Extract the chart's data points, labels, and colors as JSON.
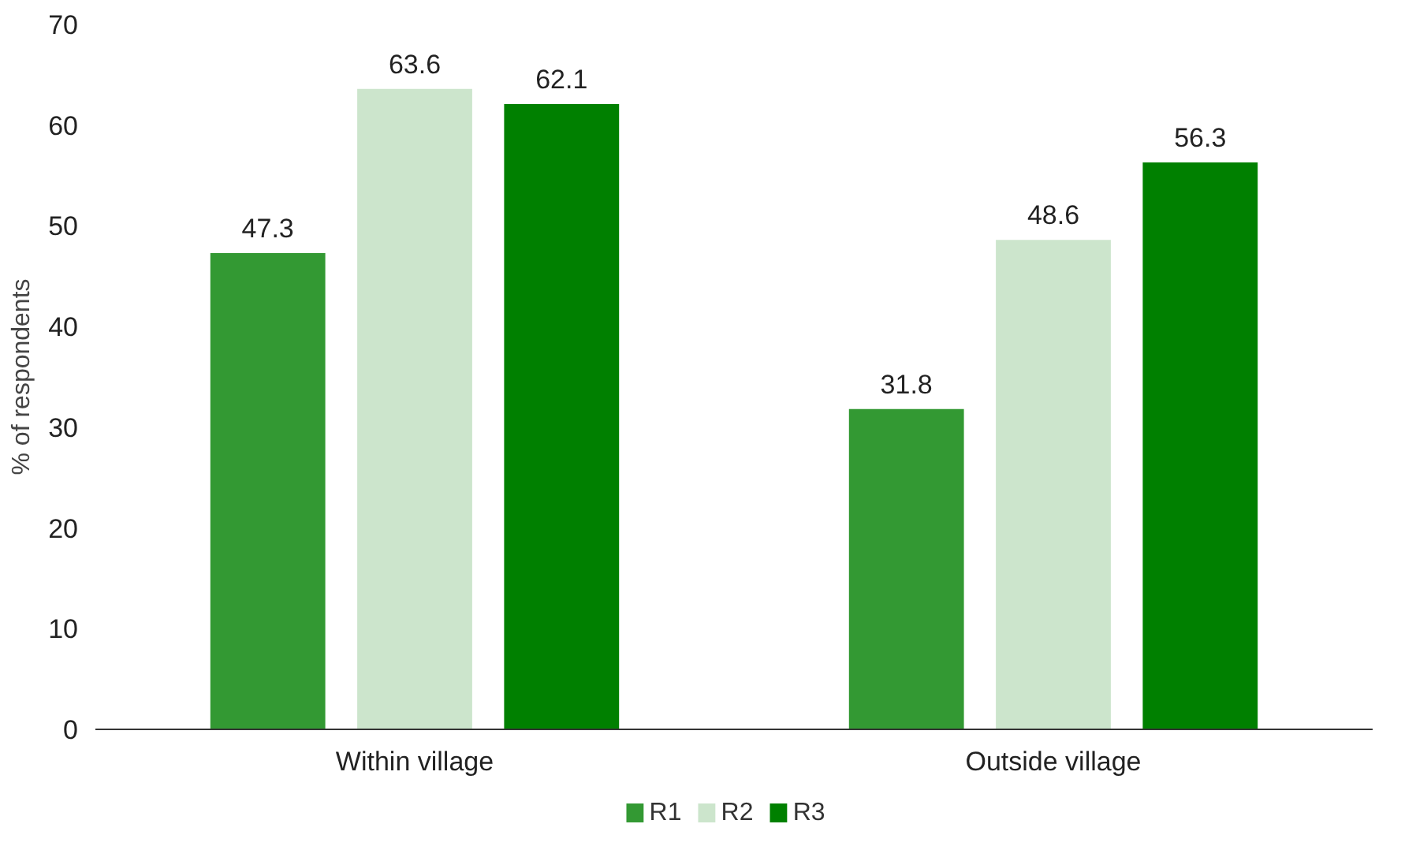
{
  "chart_data": {
    "type": "bar",
    "ylabel": "% of respondents",
    "categories": [
      "Within village",
      "Outside village"
    ],
    "series": [
      {
        "name": "R1",
        "color": "#339933",
        "values": [
          47.3,
          31.8
        ]
      },
      {
        "name": "R2",
        "color": "#cce5cc",
        "values": [
          63.6,
          48.6
        ]
      },
      {
        "name": "R3",
        "color": "#008000",
        "values": [
          62.1,
          56.3
        ]
      }
    ],
    "ylim": [
      0,
      70
    ],
    "yticks": [
      0,
      10,
      20,
      30,
      40,
      50,
      60,
      70
    ],
    "data_labels": true,
    "grid": false,
    "legend": "bottom"
  }
}
